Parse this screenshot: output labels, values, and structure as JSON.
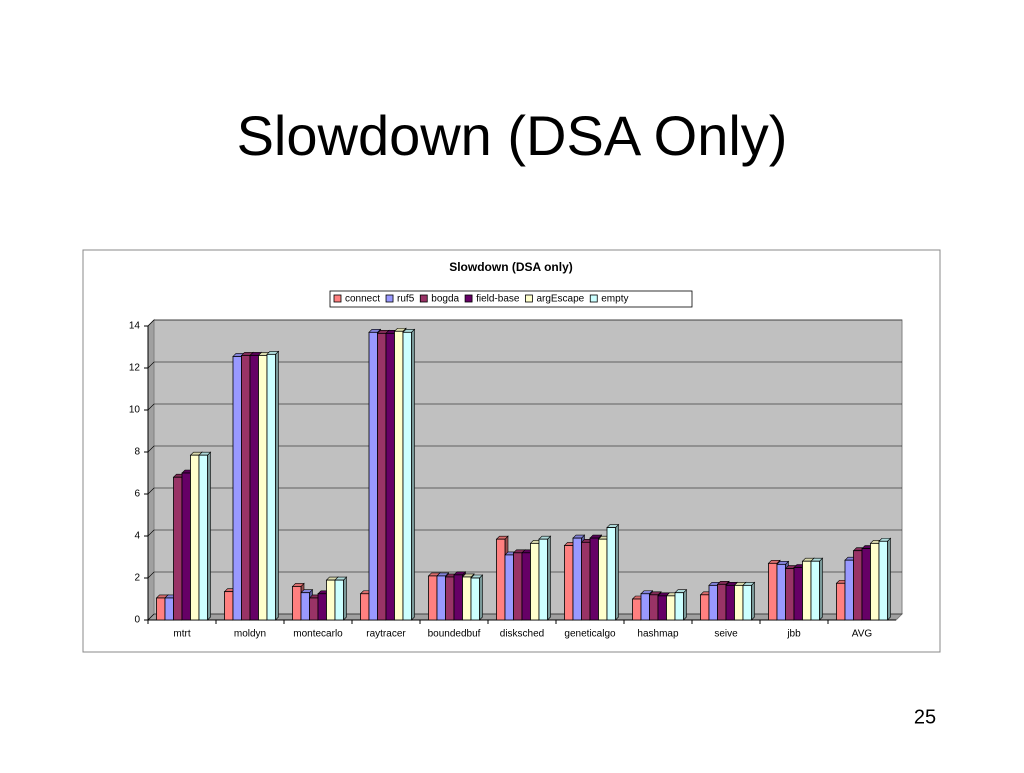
{
  "slide": {
    "title": "Slowdown (DSA Only)",
    "page_number": "25"
  },
  "chart_data": {
    "type": "bar",
    "title": "Slowdown (DSA only)",
    "categories": [
      "mtrt",
      "moldyn",
      "montecarlo",
      "raytracer",
      "boundedbuf",
      "disksched",
      "geneticalgo",
      "hashmap",
      "seive",
      "jbb",
      "AVG"
    ],
    "series": [
      {
        "name": "connect",
        "color": "#ff8080",
        "values": [
          1.05,
          1.35,
          1.6,
          1.25,
          2.1,
          3.85,
          3.55,
          1.0,
          1.2,
          2.7,
          1.75
        ]
      },
      {
        "name": "ruf5",
        "color": "#9999ff",
        "values": [
          1.05,
          12.55,
          1.3,
          13.7,
          2.1,
          3.1,
          3.9,
          1.25,
          1.65,
          2.65,
          2.85
        ]
      },
      {
        "name": "bogda",
        "color": "#993366",
        "values": [
          6.8,
          12.6,
          1.05,
          13.65,
          2.05,
          3.2,
          3.7,
          1.2,
          1.7,
          2.45,
          3.3
        ]
      },
      {
        "name": "field-base",
        "color": "#660066",
        "values": [
          7.0,
          12.6,
          1.25,
          13.65,
          2.15,
          3.2,
          3.9,
          1.15,
          1.65,
          2.5,
          3.4
        ]
      },
      {
        "name": "argEscape",
        "color": "#ffffcc",
        "values": [
          7.85,
          12.6,
          1.9,
          13.75,
          2.05,
          3.65,
          3.85,
          1.15,
          1.65,
          2.8,
          3.65
        ]
      },
      {
        "name": "empty",
        "color": "#ccffff",
        "values": [
          7.85,
          12.65,
          1.9,
          13.7,
          2.0,
          3.85,
          4.4,
          1.3,
          1.65,
          2.8,
          3.75
        ]
      }
    ],
    "ylim": [
      0,
      14
    ],
    "yticks": [
      0,
      2,
      4,
      6,
      8,
      10,
      12,
      14
    ],
    "grid": true,
    "legend": "top"
  }
}
